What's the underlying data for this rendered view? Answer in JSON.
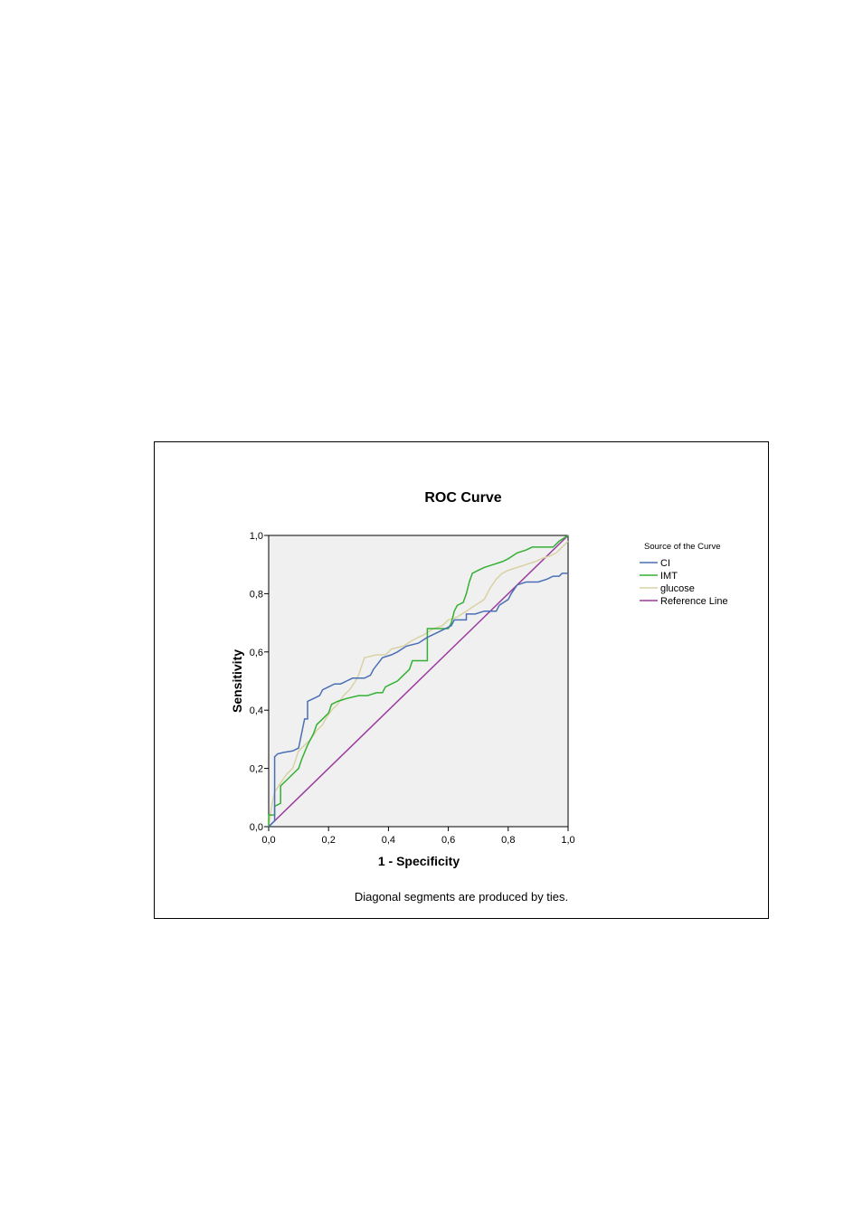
{
  "chart_data": {
    "type": "line",
    "title": "ROC Curve",
    "xlabel": "1 - Specificity",
    "ylabel": "Sensitivity",
    "xlim": [
      0,
      1
    ],
    "ylim": [
      0,
      1
    ],
    "xticks": [
      "0,0",
      "0,2",
      "0,4",
      "0,6",
      "0,8",
      "1,0"
    ],
    "yticks": [
      "0,0",
      "0,2",
      "0,4",
      "0,6",
      "0,8",
      "1,0"
    ],
    "legend_title": "Source of the Curve",
    "legend_position": "right",
    "footnote": "Diagonal segments are produced by ties.",
    "plot_background": "#f0f0f0",
    "series": [
      {
        "name": "CI",
        "color": "#4a6fb5",
        "points": [
          [
            0,
            0
          ],
          [
            0.02,
            0.02
          ],
          [
            0.02,
            0.15
          ],
          [
            0.02,
            0.24
          ],
          [
            0.03,
            0.25
          ],
          [
            0.05,
            0.255
          ],
          [
            0.08,
            0.26
          ],
          [
            0.1,
            0.27
          ],
          [
            0.12,
            0.37
          ],
          [
            0.13,
            0.37
          ],
          [
            0.13,
            0.43
          ],
          [
            0.15,
            0.44
          ],
          [
            0.17,
            0.45
          ],
          [
            0.18,
            0.47
          ],
          [
            0.2,
            0.48
          ],
          [
            0.22,
            0.49
          ],
          [
            0.24,
            0.49
          ],
          [
            0.26,
            0.5
          ],
          [
            0.28,
            0.51
          ],
          [
            0.32,
            0.51
          ],
          [
            0.34,
            0.52
          ],
          [
            0.35,
            0.54
          ],
          [
            0.38,
            0.58
          ],
          [
            0.41,
            0.59
          ],
          [
            0.43,
            0.6
          ],
          [
            0.46,
            0.62
          ],
          [
            0.5,
            0.63
          ],
          [
            0.53,
            0.65
          ],
          [
            0.57,
            0.67
          ],
          [
            0.61,
            0.69
          ],
          [
            0.62,
            0.71
          ],
          [
            0.66,
            0.71
          ],
          [
            0.66,
            0.73
          ],
          [
            0.69,
            0.73
          ],
          [
            0.72,
            0.74
          ],
          [
            0.76,
            0.74
          ],
          [
            0.77,
            0.76
          ],
          [
            0.8,
            0.78
          ],
          [
            0.81,
            0.8
          ],
          [
            0.83,
            0.83
          ],
          [
            0.86,
            0.84
          ],
          [
            0.9,
            0.84
          ],
          [
            0.93,
            0.85
          ],
          [
            0.95,
            0.86
          ],
          [
            0.97,
            0.86
          ],
          [
            0.98,
            0.87
          ],
          [
            1.0,
            0.87
          ]
        ]
      },
      {
        "name": "IMT",
        "color": "#34b034",
        "points": [
          [
            0,
            0
          ],
          [
            0,
            0.04
          ],
          [
            0.02,
            0.04
          ],
          [
            0.02,
            0.07
          ],
          [
            0.04,
            0.08
          ],
          [
            0.04,
            0.14
          ],
          [
            0.06,
            0.16
          ],
          [
            0.08,
            0.18
          ],
          [
            0.1,
            0.2
          ],
          [
            0.11,
            0.23
          ],
          [
            0.13,
            0.28
          ],
          [
            0.15,
            0.32
          ],
          [
            0.16,
            0.35
          ],
          [
            0.18,
            0.37
          ],
          [
            0.2,
            0.39
          ],
          [
            0.21,
            0.42
          ],
          [
            0.23,
            0.43
          ],
          [
            0.26,
            0.44
          ],
          [
            0.3,
            0.45
          ],
          [
            0.33,
            0.45
          ],
          [
            0.36,
            0.46
          ],
          [
            0.38,
            0.46
          ],
          [
            0.39,
            0.48
          ],
          [
            0.41,
            0.49
          ],
          [
            0.43,
            0.5
          ],
          [
            0.44,
            0.51
          ],
          [
            0.47,
            0.54
          ],
          [
            0.48,
            0.57
          ],
          [
            0.49,
            0.57
          ],
          [
            0.53,
            0.57
          ],
          [
            0.53,
            0.68
          ],
          [
            0.6,
            0.68
          ],
          [
            0.61,
            0.7
          ],
          [
            0.62,
            0.74
          ],
          [
            0.63,
            0.76
          ],
          [
            0.65,
            0.77
          ],
          [
            0.66,
            0.8
          ],
          [
            0.67,
            0.84
          ],
          [
            0.68,
            0.87
          ],
          [
            0.7,
            0.88
          ],
          [
            0.72,
            0.89
          ],
          [
            0.75,
            0.9
          ],
          [
            0.78,
            0.91
          ],
          [
            0.8,
            0.92
          ],
          [
            0.83,
            0.94
          ],
          [
            0.86,
            0.95
          ],
          [
            0.88,
            0.96
          ],
          [
            0.95,
            0.96
          ],
          [
            0.97,
            0.98
          ],
          [
            1.0,
            1.0
          ]
        ]
      },
      {
        "name": "glucose",
        "color": "#d8d2a4",
        "points": [
          [
            0,
            0
          ],
          [
            0.01,
            0.07
          ],
          [
            0.02,
            0.12
          ],
          [
            0.04,
            0.15
          ],
          [
            0.06,
            0.18
          ],
          [
            0.08,
            0.2
          ],
          [
            0.1,
            0.26
          ],
          [
            0.12,
            0.28
          ],
          [
            0.14,
            0.3
          ],
          [
            0.16,
            0.33
          ],
          [
            0.18,
            0.35
          ],
          [
            0.19,
            0.37
          ],
          [
            0.21,
            0.4
          ],
          [
            0.23,
            0.42
          ],
          [
            0.25,
            0.45
          ],
          [
            0.27,
            0.47
          ],
          [
            0.29,
            0.5
          ],
          [
            0.3,
            0.52
          ],
          [
            0.32,
            0.58
          ],
          [
            0.36,
            0.59
          ],
          [
            0.39,
            0.59
          ],
          [
            0.41,
            0.61
          ],
          [
            0.45,
            0.62
          ],
          [
            0.48,
            0.64
          ],
          [
            0.52,
            0.66
          ],
          [
            0.55,
            0.68
          ],
          [
            0.58,
            0.69
          ],
          [
            0.6,
            0.71
          ],
          [
            0.63,
            0.72
          ],
          [
            0.66,
            0.74
          ],
          [
            0.69,
            0.76
          ],
          [
            0.72,
            0.78
          ],
          [
            0.74,
            0.82
          ],
          [
            0.76,
            0.85
          ],
          [
            0.78,
            0.87
          ],
          [
            0.8,
            0.88
          ],
          [
            0.83,
            0.89
          ],
          [
            0.86,
            0.9
          ],
          [
            0.89,
            0.91
          ],
          [
            0.91,
            0.92
          ],
          [
            0.94,
            0.93
          ],
          [
            0.96,
            0.94
          ],
          [
            0.98,
            0.96
          ],
          [
            1.0,
            0.98
          ]
        ]
      },
      {
        "name": "Reference Line",
        "color": "#9b3a9e",
        "points": [
          [
            0,
            0
          ],
          [
            1,
            1
          ]
        ]
      }
    ]
  }
}
